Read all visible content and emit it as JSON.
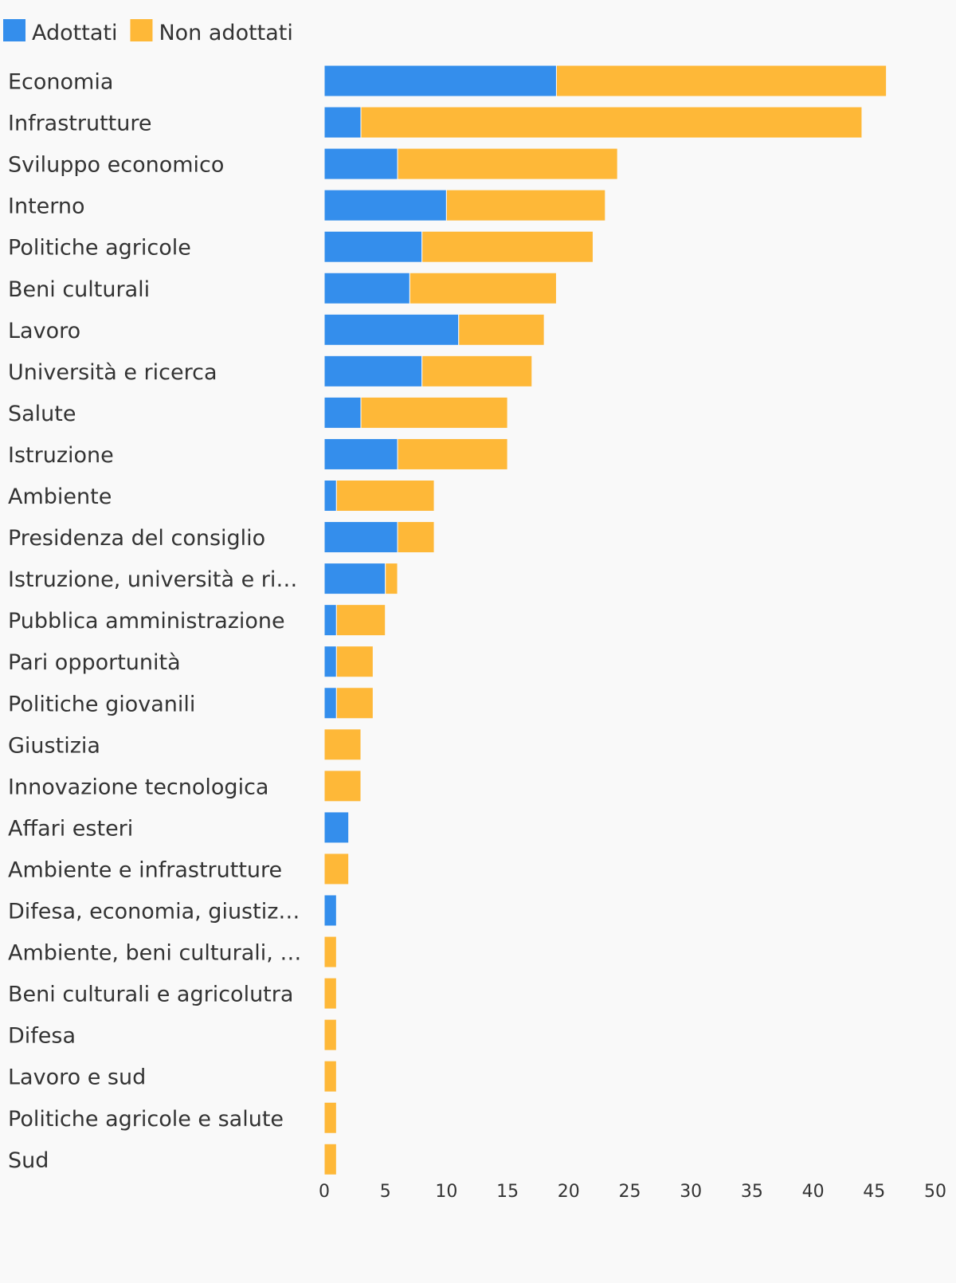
{
  "chart_data": {
    "type": "bar",
    "orientation": "horizontal",
    "stacked": true,
    "categories": [
      "Economia",
      "Infrastrutture",
      "Sviluppo economico",
      "Interno",
      "Politiche agricole",
      "Beni culturali",
      "Lavoro",
      "Università e ricerca",
      "Salute",
      "Istruzione",
      "Ambiente",
      "Presidenza del consiglio",
      "Istruzione, università e ri…",
      "Pubblica amministrazione",
      "Pari opportunità",
      "Politiche giovanili",
      "Giustizia",
      "Innovazione tecnologica",
      "Affari esteri",
      "Ambiente e infrastrutture",
      "Difesa, economia, giustiz…",
      "Ambiente, beni culturali, …",
      "Beni culturali e agricolutra",
      "Difesa",
      "Lavoro e sud",
      "Politiche agricole e salute",
      "Sud"
    ],
    "series": [
      {
        "name": "Adottati",
        "color": "#348eec",
        "values": [
          19,
          3,
          6,
          10,
          8,
          7,
          11,
          8,
          3,
          6,
          1,
          6,
          5,
          1,
          1,
          1,
          0,
          0,
          2,
          0,
          1,
          0,
          0,
          0,
          0,
          0,
          0
        ]
      },
      {
        "name": "Non adottati",
        "color": "#feb838",
        "values": [
          27,
          41,
          18,
          13,
          14,
          12,
          7,
          9,
          12,
          9,
          8,
          3,
          1,
          4,
          3,
          3,
          3,
          3,
          0,
          2,
          0,
          1,
          1,
          1,
          1,
          1,
          1
        ]
      }
    ],
    "xlim": [
      0,
      50
    ],
    "xticks": [
      0,
      5,
      10,
      15,
      20,
      25,
      30,
      35,
      40,
      45,
      50
    ],
    "title": "",
    "xlabel": "",
    "ylabel": "",
    "grid": false,
    "legend": "top-left"
  }
}
